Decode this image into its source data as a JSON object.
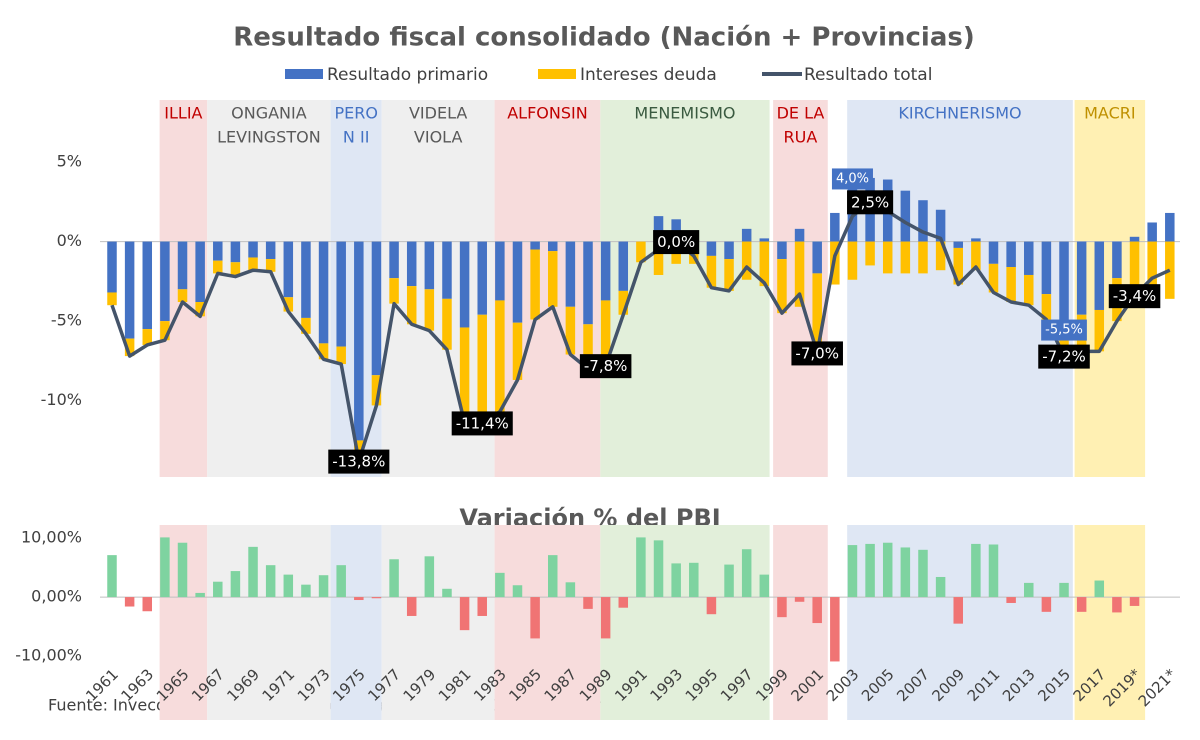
{
  "chart_data": [
    {
      "type": "bar",
      "title": "Resultado fiscal consolidado (Nación + Provincias)",
      "ylim": [
        -14.8,
        8.9
      ],
      "yticks": [
        {
          "value": 5,
          "label": "5%"
        },
        {
          "value": 0,
          "label": "0%"
        },
        {
          "value": -5,
          "label": "-5%"
        },
        {
          "value": -10,
          "label": "-10%"
        }
      ],
      "grid": false,
      "periods": [
        {
          "label": [
            "ILLIA"
          ],
          "start": 1963.7,
          "end": 1966.4,
          "color": "#f7dcdc",
          "text_color": "#c00000"
        },
        {
          "label": [
            "ONGANIA",
            "LEVINGSTON"
          ],
          "start": 1966.4,
          "end": 1973.4,
          "color": "#efefef",
          "text_color": "#595959"
        },
        {
          "label": [
            "PERO",
            "N II"
          ],
          "start": 1973.4,
          "end": 1976.3,
          "color": "#dfe7f4",
          "text_color": "#4472c4"
        },
        {
          "label": [
            "VIDELA",
            "VIOLA"
          ],
          "start": 1976.3,
          "end": 1982.7,
          "color": "#efefef",
          "text_color": "#595959"
        },
        {
          "label": [
            "ALFONSIN"
          ],
          "start": 1982.7,
          "end": 1988.7,
          "color": "#f7dcdc",
          "text_color": "#c00000"
        },
        {
          "label": [
            "MENEMISMO"
          ],
          "start": 1988.7,
          "end": 1998.3,
          "color": "#e2efda",
          "text_color": "#3a5a40"
        },
        {
          "label": [
            "DE LA",
            "RUA"
          ],
          "start": 1998.5,
          "end": 2001.6,
          "color": "#f7dcdc",
          "text_color": "#c00000"
        },
        {
          "label": [
            "KIRCHNERISMO"
          ],
          "start": 2002.7,
          "end": 2015.5,
          "color": "#dfe7f4",
          "text_color": "#4472c4"
        },
        {
          "label": [
            "MACRI"
          ],
          "start": 2015.6,
          "end": 2019.6,
          "color": "#fff0b3",
          "text_color": "#bf9000"
        }
      ],
      "series": [
        {
          "name": "Resultado primario",
          "color": "#4472c4",
          "values": [
            -3.2,
            -6.1,
            -5.5,
            -5.0,
            -3.0,
            -3.8,
            -1.2,
            -1.3,
            -1.0,
            -1.1,
            -3.5,
            -4.8,
            -6.4,
            -6.6,
            -12.5,
            -8.4,
            -2.3,
            -2.8,
            -3.0,
            -3.6,
            -5.4,
            -4.6,
            -3.7,
            -5.1,
            -0.5,
            -0.6,
            -4.1,
            -5.2,
            -3.7,
            -3.1,
            0.0,
            1.6,
            1.4,
            0.5,
            -0.9,
            -1.1,
            0.8,
            0.2,
            -1.1,
            0.8,
            -2.0,
            1.8,
            4.0,
            4.0,
            3.9,
            3.2,
            2.6,
            2.0,
            -0.4,
            0.2,
            -1.4,
            -1.6,
            -2.1,
            -3.3,
            -5.5,
            -4.6,
            -4.3,
            -2.3,
            0.3,
            1.2,
            1.8
          ],
          "value_labels": [
            null,
            null,
            null,
            null,
            null,
            null,
            null,
            null,
            null,
            null,
            null,
            null,
            null,
            null,
            null,
            null,
            null,
            null,
            null,
            null,
            null,
            null,
            null,
            null,
            null,
            null,
            null,
            null,
            null,
            null,
            null,
            null,
            null,
            null,
            null,
            null,
            null,
            null,
            null,
            null,
            null,
            null,
            "4,0%",
            null,
            null,
            null,
            null,
            null,
            null,
            null,
            null,
            null,
            null,
            null,
            "-5,5%",
            null,
            null,
            null,
            null,
            null,
            null
          ]
        },
        {
          "name": "Intereses deuda",
          "color": "#ffc000",
          "values": [
            -0.8,
            -1.1,
            -1.0,
            -1.2,
            -0.8,
            -0.9,
            -0.8,
            -0.9,
            -0.8,
            -0.8,
            -0.9,
            -1.0,
            -1.0,
            -1.1,
            -1.3,
            -1.9,
            -1.6,
            -2.4,
            -2.6,
            -3.2,
            -6.0,
            -6.8,
            -7.0,
            -3.6,
            -4.4,
            -3.5,
            -3.0,
            -2.8,
            -4.1,
            -1.5,
            -1.3,
            -2.1,
            -1.4,
            -1.4,
            -2.0,
            -2.0,
            -2.4,
            -2.8,
            -3.4,
            -4.1,
            -5.0,
            -2.7,
            -2.4,
            -1.5,
            -2.0,
            -2.0,
            -2.0,
            -1.8,
            -2.3,
            -1.8,
            -1.8,
            -2.2,
            -1.9,
            -1.6,
            -1.7,
            -2.3,
            -2.6,
            -2.7,
            -3.7,
            -3.5,
            -3.6
          ]
        },
        {
          "name": "Resultado total",
          "color": "#44546a",
          "type": "line",
          "values": [
            -4.0,
            -7.2,
            -6.5,
            -6.2,
            -3.8,
            -4.7,
            -2.0,
            -2.2,
            -1.8,
            -1.9,
            -4.4,
            -5.8,
            -7.4,
            -7.7,
            -13.8,
            -10.3,
            -3.9,
            -5.2,
            -5.6,
            -6.8,
            -11.4,
            -11.4,
            -10.7,
            -8.7,
            -4.9,
            -4.1,
            -7.1,
            -8.0,
            -7.8,
            -4.6,
            -1.3,
            -0.5,
            0.0,
            -0.9,
            -2.9,
            -3.1,
            -1.6,
            -2.6,
            -4.5,
            -3.3,
            -7.0,
            -0.9,
            1.6,
            2.5,
            1.9,
            1.2,
            0.6,
            0.2,
            -2.7,
            -1.6,
            -3.2,
            -3.8,
            -4.0,
            -4.9,
            -7.2,
            -6.9,
            -6.9,
            -5.0,
            -3.4,
            -2.3,
            -1.8
          ],
          "value_labels": [
            null,
            null,
            null,
            null,
            null,
            null,
            null,
            null,
            null,
            null,
            null,
            null,
            null,
            null,
            "-13,8%",
            null,
            null,
            null,
            null,
            null,
            null,
            "-11,4%",
            null,
            null,
            null,
            null,
            null,
            null,
            "-7,8%",
            null,
            null,
            null,
            "0,0%",
            null,
            null,
            null,
            null,
            null,
            null,
            null,
            "-7,0%",
            null,
            null,
            "2,5%",
            null,
            null,
            null,
            null,
            null,
            null,
            null,
            null,
            null,
            null,
            "-7,2%",
            null,
            null,
            null,
            "-3,4%",
            null,
            null
          ]
        }
      ]
    },
    {
      "type": "bar",
      "title": "Variación % del PBI",
      "ylim": [
        -11.5,
        12.2
      ],
      "yticks": [
        {
          "value": 10,
          "label": "10,00%"
        },
        {
          "value": 0,
          "label": "0,00%"
        },
        {
          "value": -10,
          "label": "-10,00%"
        }
      ],
      "grid": false,
      "positive_color": "#7ed3a0",
      "negative_color": "#f07474",
      "categories": [
        "1961",
        null,
        "1963",
        null,
        "1965",
        null,
        "1967",
        null,
        "1969",
        null,
        "1971",
        null,
        "1973",
        null,
        "1975",
        null,
        "1977",
        null,
        "1979",
        null,
        "1981",
        null,
        "1983",
        null,
        "1985",
        null,
        "1987",
        null,
        "1989",
        null,
        "1991",
        null,
        "1993",
        null,
        "1995",
        null,
        "1997",
        null,
        "1999",
        null,
        "2001",
        null,
        "2003",
        null,
        "2005",
        null,
        "2007",
        null,
        "2009",
        null,
        "2011",
        null,
        "2013",
        null,
        "2015",
        null,
        "2017",
        null,
        "2019*",
        null,
        "2021*"
      ],
      "values": [
        7.1,
        -1.6,
        -2.4,
        10.1,
        9.2,
        0.7,
        2.6,
        4.4,
        8.5,
        5.4,
        3.8,
        2.1,
        3.7,
        5.4,
        -0.5,
        -0.2,
        6.4,
        -3.2,
        6.9,
        1.4,
        -5.6,
        -3.2,
        4.1,
        2.0,
        -7.0,
        7.1,
        2.5,
        -2.0,
        -7.0,
        -1.8,
        10.1,
        9.6,
        5.7,
        5.8,
        -2.9,
        5.5,
        8.1,
        3.8,
        -3.4,
        -0.8,
        -4.4,
        -10.9,
        8.8,
        9.0,
        9.2,
        8.4,
        8.0,
        3.4,
        -4.5,
        9.0,
        8.9,
        -1.0,
        2.4,
        -2.5,
        2.4,
        -2.5,
        2.8,
        -2.6,
        -1.5,
        null,
        null
      ]
    }
  ],
  "source": "Fuente: Invecq en base a Ministerio de Hacienda, INDEC y estimaciones propias"
}
